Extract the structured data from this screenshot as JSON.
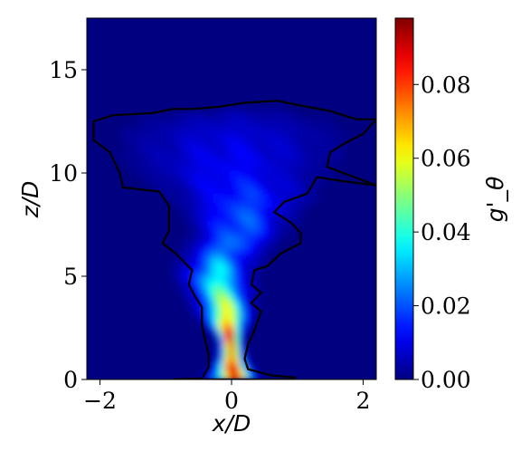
{
  "chart_data": {
    "type": "heatmap",
    "title": "",
    "xlabel": "x/D",
    "ylabel": "z/D",
    "colorbar_label": "g'_θ",
    "colormap": "jet",
    "xlim": [
      -2.2,
      2.2
    ],
    "ylim": [
      0,
      17.5
    ],
    "clim": [
      0,
      0.098
    ],
    "x_ticks": [
      -2,
      0,
      2
    ],
    "x_tick_labels": [
      "−2",
      "0",
      "2"
    ],
    "y_ticks": [
      0,
      5,
      10,
      15
    ],
    "y_tick_labels": [
      "0",
      "5",
      "10",
      "15"
    ],
    "colorbar_ticks": [
      0.0,
      0.02,
      0.04,
      0.06,
      0.08
    ],
    "colorbar_tick_labels": [
      "0.00",
      "0.02",
      "0.04",
      "0.06",
      "0.08"
    ],
    "contour_line_color": "#000000",
    "plume_profile": [
      {
        "z": 0.0,
        "center_x": 0.0,
        "half_width": 0.35,
        "peak": 0.098
      },
      {
        "z": 1.0,
        "center_x": 0.0,
        "half_width": 0.18,
        "peak": 0.098
      },
      {
        "z": 2.0,
        "center_x": -0.03,
        "half_width": 0.15,
        "peak": 0.098
      },
      {
        "z": 3.0,
        "center_x": -0.08,
        "half_width": 0.32,
        "peak": 0.08
      },
      {
        "z": 4.0,
        "center_x": -0.15,
        "half_width": 0.42,
        "peak": 0.055
      },
      {
        "z": 5.0,
        "center_x": -0.25,
        "half_width": 0.48,
        "peak": 0.045
      },
      {
        "z": 6.0,
        "center_x": -0.15,
        "half_width": 0.55,
        "peak": 0.03
      },
      {
        "z": 7.0,
        "center_x": 0.1,
        "half_width": 0.6,
        "peak": 0.028
      },
      {
        "z": 8.0,
        "center_x": 0.15,
        "half_width": 0.75,
        "peak": 0.025
      },
      {
        "z": 9.0,
        "center_x": 0.2,
        "half_width": 1.0,
        "peak": 0.02
      },
      {
        "z": 10.0,
        "center_x": 0.0,
        "half_width": 1.3,
        "peak": 0.015
      },
      {
        "z": 11.0,
        "center_x": 0.0,
        "half_width": 1.6,
        "peak": 0.013
      },
      {
        "z": 12.0,
        "center_x": 0.0,
        "half_width": 1.7,
        "peak": 0.01
      },
      {
        "z": 12.8,
        "center_x": 0.0,
        "half_width": 1.5,
        "peak": 0.006
      },
      {
        "z": 13.3,
        "center_x": 0.3,
        "half_width": 0.6,
        "peak": 0.002
      }
    ],
    "contour_outline": [
      [
        -0.45,
        0.05
      ],
      [
        -0.35,
        0.6
      ],
      [
        -0.35,
        1.2
      ],
      [
        -0.45,
        2.6
      ],
      [
        -0.45,
        3.5
      ],
      [
        -0.55,
        4.0
      ],
      [
        -0.65,
        4.6
      ],
      [
        -0.6,
        5.3
      ],
      [
        -0.85,
        6.1
      ],
      [
        -1.05,
        6.6
      ],
      [
        -0.95,
        7.2
      ],
      [
        -0.95,
        8.4
      ],
      [
        -1.1,
        9.1
      ],
      [
        -1.65,
        9.3
      ],
      [
        -1.7,
        10.0
      ],
      [
        -1.85,
        11.0
      ],
      [
        -2.1,
        11.6
      ],
      [
        -2.1,
        12.5
      ],
      [
        -1.8,
        12.8
      ],
      [
        -1.2,
        12.9
      ],
      [
        -0.9,
        13.1
      ],
      [
        -0.6,
        13.1
      ],
      [
        -0.2,
        13.2
      ],
      [
        0.2,
        13.4
      ],
      [
        0.7,
        13.5
      ],
      [
        1.0,
        13.3
      ],
      [
        1.5,
        13.0
      ],
      [
        1.9,
        12.6
      ],
      [
        2.2,
        12.6
      ],
      [
        2.0,
        11.9
      ],
      [
        1.7,
        11.4
      ],
      [
        1.5,
        11.0
      ],
      [
        1.45,
        10.3
      ],
      [
        2.2,
        9.4
      ],
      [
        1.7,
        9.6
      ],
      [
        1.3,
        9.8
      ],
      [
        1.15,
        9.0
      ],
      [
        0.8,
        8.6
      ],
      [
        0.65,
        8.1
      ],
      [
        0.9,
        7.6
      ],
      [
        1.05,
        7.1
      ],
      [
        1.05,
        6.6
      ],
      [
        0.75,
        6.1
      ],
      [
        0.55,
        5.5
      ],
      [
        0.35,
        5.3
      ],
      [
        0.3,
        4.6
      ],
      [
        0.45,
        4.2
      ],
      [
        0.3,
        3.7
      ],
      [
        0.45,
        3.3
      ],
      [
        0.35,
        2.4
      ],
      [
        0.25,
        1.7
      ],
      [
        0.2,
        1.0
      ],
      [
        0.25,
        0.5
      ],
      [
        0.6,
        0.2
      ],
      [
        0.95,
        0.1
      ],
      [
        0.9,
        0.0
      ],
      [
        -0.9,
        0.0
      ],
      [
        -0.45,
        0.05
      ]
    ]
  }
}
